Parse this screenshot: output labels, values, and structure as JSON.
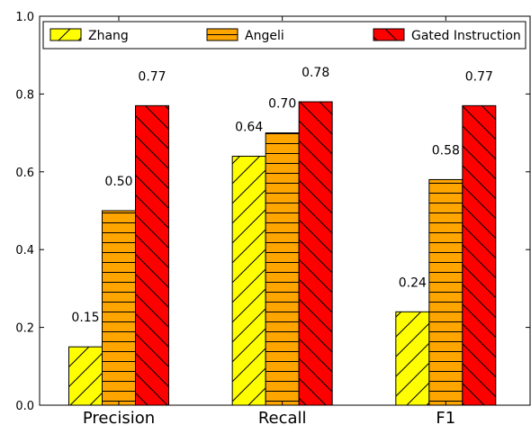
{
  "chart_data": {
    "type": "bar",
    "categories": [
      "Precision",
      "Recall",
      "F1"
    ],
    "series": [
      {
        "name": "Zhang",
        "values": [
          0.15,
          0.64,
          0.24
        ],
        "labels": [
          "0.15",
          "0.64",
          "0.24"
        ],
        "color": "#ffff00",
        "hatch": "forward-diagonal"
      },
      {
        "name": "Angeli",
        "values": [
          0.5,
          0.7,
          0.58
        ],
        "labels": [
          "0.50",
          "0.70",
          "0.58"
        ],
        "color": "#ffa500",
        "hatch": "horizontal"
      },
      {
        "name": "Gated Instruction",
        "values": [
          0.77,
          0.78,
          0.77
        ],
        "labels": [
          "0.77",
          "0.78",
          "0.77"
        ],
        "color": "#ff0000",
        "hatch": "back-diagonal"
      }
    ],
    "ylim": [
      0,
      1.0
    ],
    "yticks": [
      "0.0",
      "0.2",
      "0.4",
      "0.6",
      "0.8",
      "1.0"
    ],
    "xlabel": "",
    "ylabel": "",
    "title": "",
    "grid": false,
    "legend": "top"
  }
}
